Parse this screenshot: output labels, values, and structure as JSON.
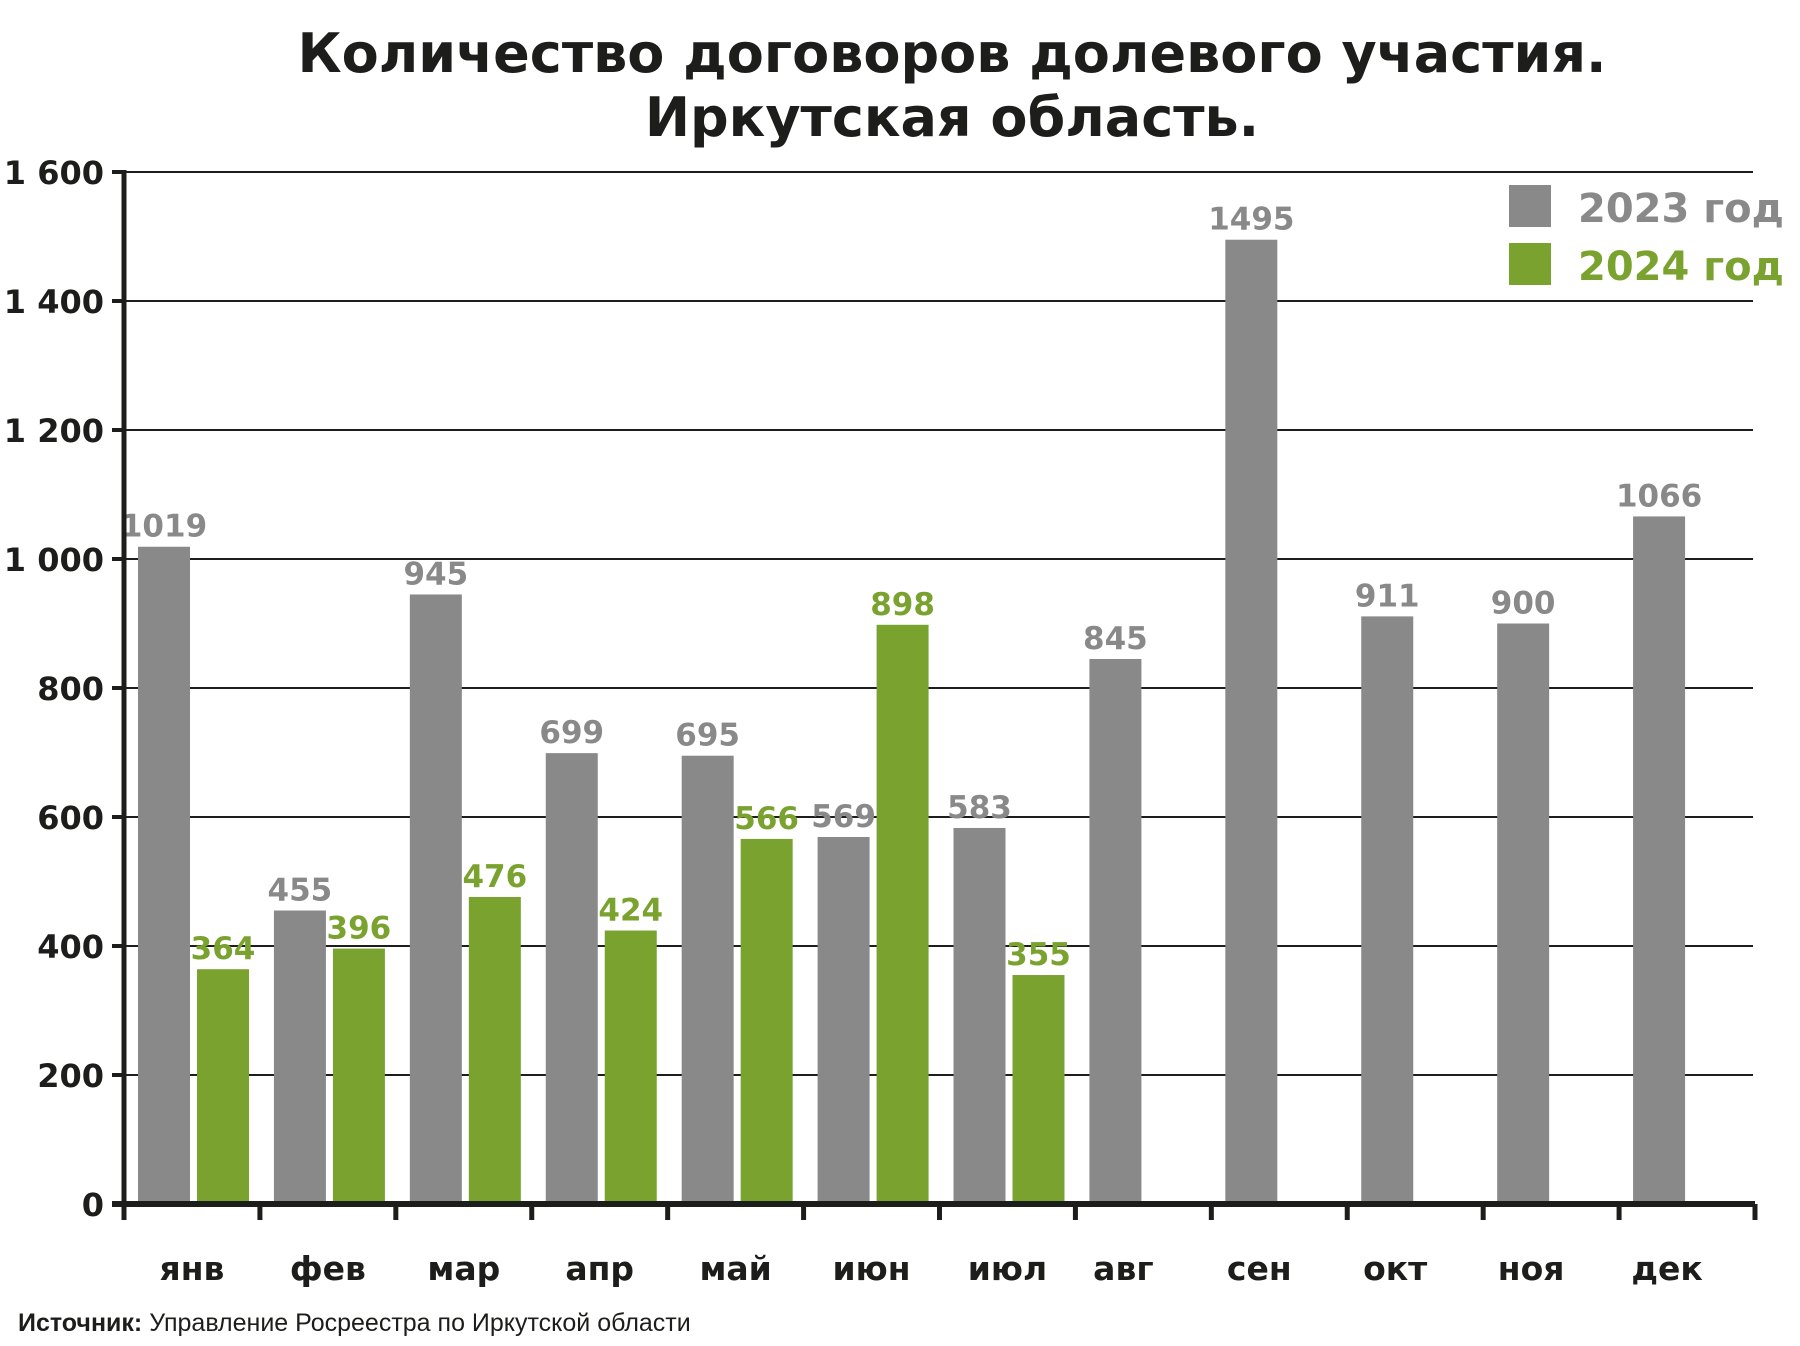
{
  "chart_data": {
    "type": "bar",
    "title": [
      "Количество договоров долевого участия.",
      "Иркутская область."
    ],
    "categories": [
      "янв",
      "фев",
      "мар",
      "апр",
      "май",
      "июн",
      "июл",
      "авг",
      "сен",
      "окт",
      "ноя",
      "дек"
    ],
    "series": [
      {
        "name": "2023 год",
        "color": "#898989",
        "values": [
          1019,
          455,
          945,
          699,
          695,
          569,
          583,
          845,
          1495,
          911,
          900,
          1066
        ]
      },
      {
        "name": "2024 год",
        "color": "#7aa22f",
        "values": [
          364,
          396,
          476,
          424,
          566,
          898,
          355,
          null,
          null,
          null,
          null,
          null
        ]
      }
    ],
    "yticks": [
      0,
      200,
      400,
      600,
      800,
      1000,
      1200,
      1400,
      1600
    ],
    "ytick_labels": [
      "0",
      "200",
      "400",
      "600",
      "800",
      "1 000",
      "1 200",
      "1 400",
      "1 600"
    ],
    "ylim": [
      0,
      1600
    ],
    "xlabel": "",
    "ylabel": "",
    "grid": true,
    "legend_position": "top-right",
    "source_label": "Источник:",
    "source_text": "Управление Росреестра по Иркутской области"
  }
}
